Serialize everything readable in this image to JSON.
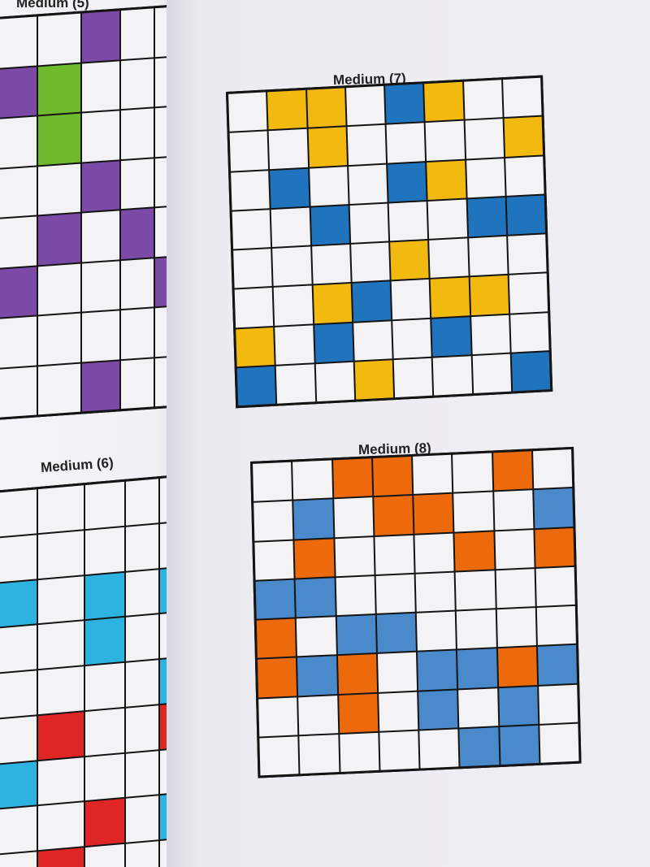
{
  "colors": {
    "W": "#f3f2f4",
    "Y": "#f2b90f",
    "B": "#1f74bd",
    "O": "#ec6a0c",
    "L": "#4a8acb",
    "P": "#7a4aa6",
    "G": "#6fba2c",
    "C": "#2cb3e0",
    "R": "#df2525"
  },
  "puzzles": [
    {
      "id": "p5",
      "title": "Medium (5)",
      "rows": [
        "WWPWWW",
        "PGWWWG",
        "WGWWWP",
        "WWPWWW",
        "WPWPWP",
        "PWWWPP",
        "WWWWWW",
        "WWPWWP"
      ]
    },
    {
      "id": "p6",
      "title": "Medium (6)",
      "rows": [
        "WWWWWW",
        "WWWWWR",
        "CWCWCW",
        "WWCWWW",
        "WWWWCW",
        "WRWWRW",
        "CWWWWR",
        "WWRWCR",
        "WRWWWW"
      ]
    },
    {
      "id": "p7",
      "title": "Medium (7)",
      "rows": [
        "WYYWBYWW",
        "WWYWWWWY",
        "WBWWBYWW",
        "WWBWWWBB",
        "WWWWYWWW",
        "WWYBWYYW",
        "YWBWWBWW",
        "BWWYWWWB"
      ]
    },
    {
      "id": "p8",
      "title": "Medium (8)",
      "rows": [
        "WWOOWWOW",
        "WLWOOWWL",
        "WOWWWOWO",
        "LLWWWWWW",
        "OWLLWWWW",
        "OLOWLLOL",
        "WWOWLWLW",
        "WWWWWLLW"
      ]
    }
  ]
}
